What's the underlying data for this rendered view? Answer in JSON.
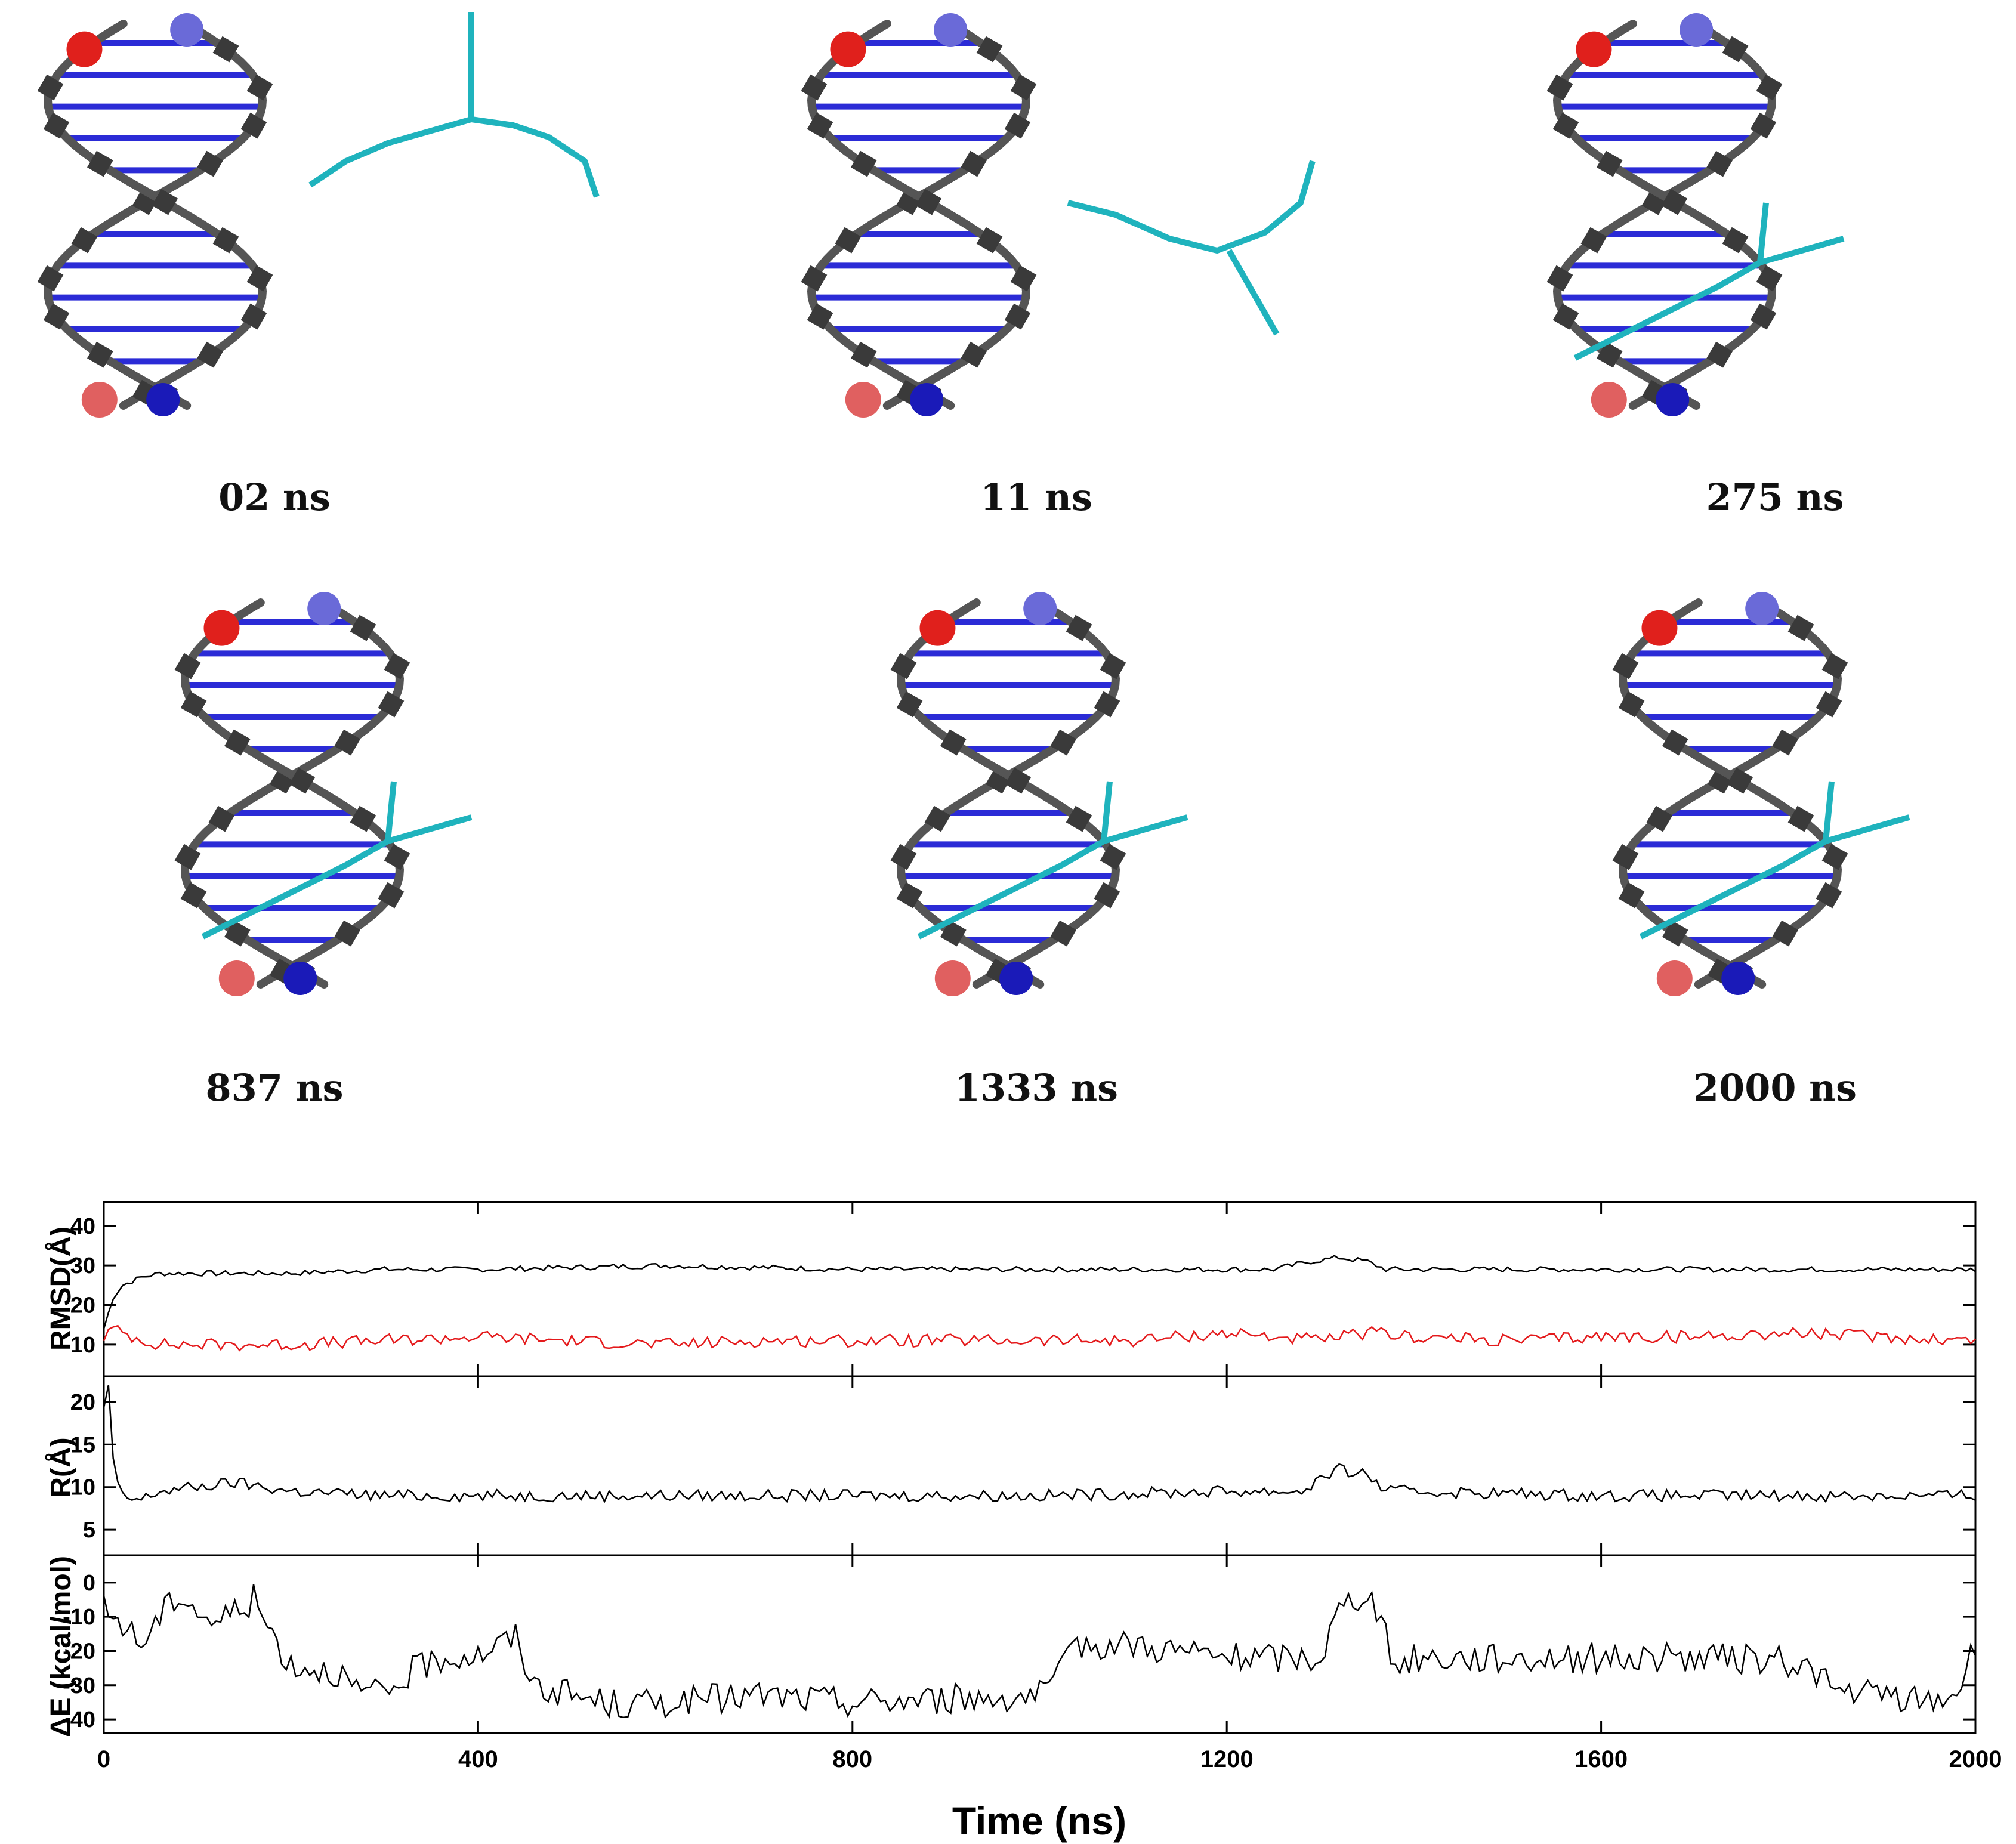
{
  "snapshots": [
    {
      "label": "02 ns",
      "state": "apart"
    },
    {
      "label": "11 ns",
      "state": "approach"
    },
    {
      "label": "275 ns",
      "state": "groove"
    },
    {
      "label": "837 ns",
      "state": "groove"
    },
    {
      "label": "1333 ns",
      "state": "groove"
    },
    {
      "label": "2000 ns",
      "state": "groove"
    }
  ],
  "colors": {
    "backbone": "#555555",
    "bases": "#2b2bd6",
    "ligand": "#1fb3bd",
    "sphere_red": "#e0201c",
    "sphere_blue": "#1a1ab8",
    "rmsd_line_1": "#000000",
    "rmsd_line_2": "#e41a1c",
    "r_line": "#000000",
    "de_line": "#000000"
  },
  "chart_data": {
    "type": "line",
    "xlabel": "Time (ns)",
    "xlim": [
      0,
      2000
    ],
    "xticks": [
      0,
      400,
      800,
      1200,
      1600,
      2000
    ],
    "panels": [
      {
        "id": "rmsd",
        "ylabel": "RMSD(Å)",
        "ylim": [
          2,
          46
        ],
        "yticks": [
          10,
          20,
          30,
          40
        ],
        "series": [
          {
            "color": "#000000",
            "x": [
              0,
              10,
              20,
              40,
              60,
              100,
              140,
              200,
              300,
              400,
              600,
              800,
              1000,
              1200,
              1250,
              1290,
              1320,
              1350,
              1370,
              1400,
              1600,
              1800,
              2000
            ],
            "y": [
              14,
              22,
              25,
              27,
              28,
              28,
              28,
              28,
              29,
              29,
              30,
              29,
              29,
              29,
              29,
              31,
              32,
              31,
              29,
              29,
              29,
              29,
              29
            ]
          },
          {
            "color": "#e41a1c",
            "x": [
              0,
              10,
              30,
              60,
              100,
              200,
              300,
              400,
              500,
              600,
              700,
              800,
              900,
              1000,
              1100,
              1200,
              1250,
              1300,
              1350,
              1400,
              1500,
              1600,
              1700,
              1800,
              1900,
              2000
            ],
            "y": [
              12,
              14,
              12,
              10,
              10,
              10,
              11,
              12,
              11,
              10,
              11,
              11,
              11,
              11,
              11,
              13,
              12,
              11,
              13,
              12,
              11,
              12,
              12,
              13,
              12,
              11
            ]
          }
        ]
      },
      {
        "id": "r",
        "ylabel": "R(Å)",
        "ylim": [
          2,
          23
        ],
        "yticks": [
          5,
          10,
          15,
          20
        ],
        "series": [
          {
            "color": "#000000",
            "x": [
              0,
              5,
              10,
              15,
              20,
              30,
              40,
              60,
              100,
              140,
              200,
              300,
              400,
              600,
              800,
              1000,
              1200,
              1280,
              1300,
              1320,
              1350,
              1370,
              1400,
              1600,
              1800,
              2000
            ],
            "y": [
              19,
              22,
              13,
              10,
              9,
              8.5,
              8.5,
              9.5,
              10,
              10.5,
              9.5,
              9,
              9,
              9,
              9,
              9,
              9.5,
              9.5,
              11,
              12,
              11.5,
              9.5,
              9.5,
              9,
              9,
              9
            ]
          }
        ]
      },
      {
        "id": "de",
        "ylabel": "ΔE (kcal/mol)",
        "ylim": [
          -44,
          8
        ],
        "yticks": [
          0,
          -10,
          -20,
          -30,
          -40
        ],
        "series": [
          {
            "color": "#000000",
            "x": [
              0,
              20,
              40,
              60,
              80,
              100,
              120,
              140,
              160,
              180,
              200,
              250,
              270,
              300,
              330,
              360,
              400,
              440,
              460,
              500,
              550,
              600,
              700,
              800,
              900,
              1000,
              1020,
              1040,
              1100,
              1200,
              1300,
              1320,
              1350,
              1360,
              1380,
              1400,
              1500,
              1600,
              1700,
              1800,
              1830,
              1850,
              1900,
              1950,
              1980,
              2000
            ],
            "y": [
              -8,
              -12,
              -18,
              -10,
              -3,
              -8,
              -12,
              -8,
              -5,
              -15,
              -24,
              -26,
              -32,
              -33,
              -26,
              -22,
              -21,
              -16,
              -30,
              -33,
              -36,
              -35,
              -33,
              -35,
              -34,
              -33,
              -28,
              -18,
              -18,
              -22,
              -22,
              -8,
              -2,
              -8,
              -25,
              -22,
              -22,
              -22,
              -22,
              -23,
              -26,
              -32,
              -33,
              -35,
              -32,
              -18
            ]
          }
        ]
      }
    ]
  }
}
